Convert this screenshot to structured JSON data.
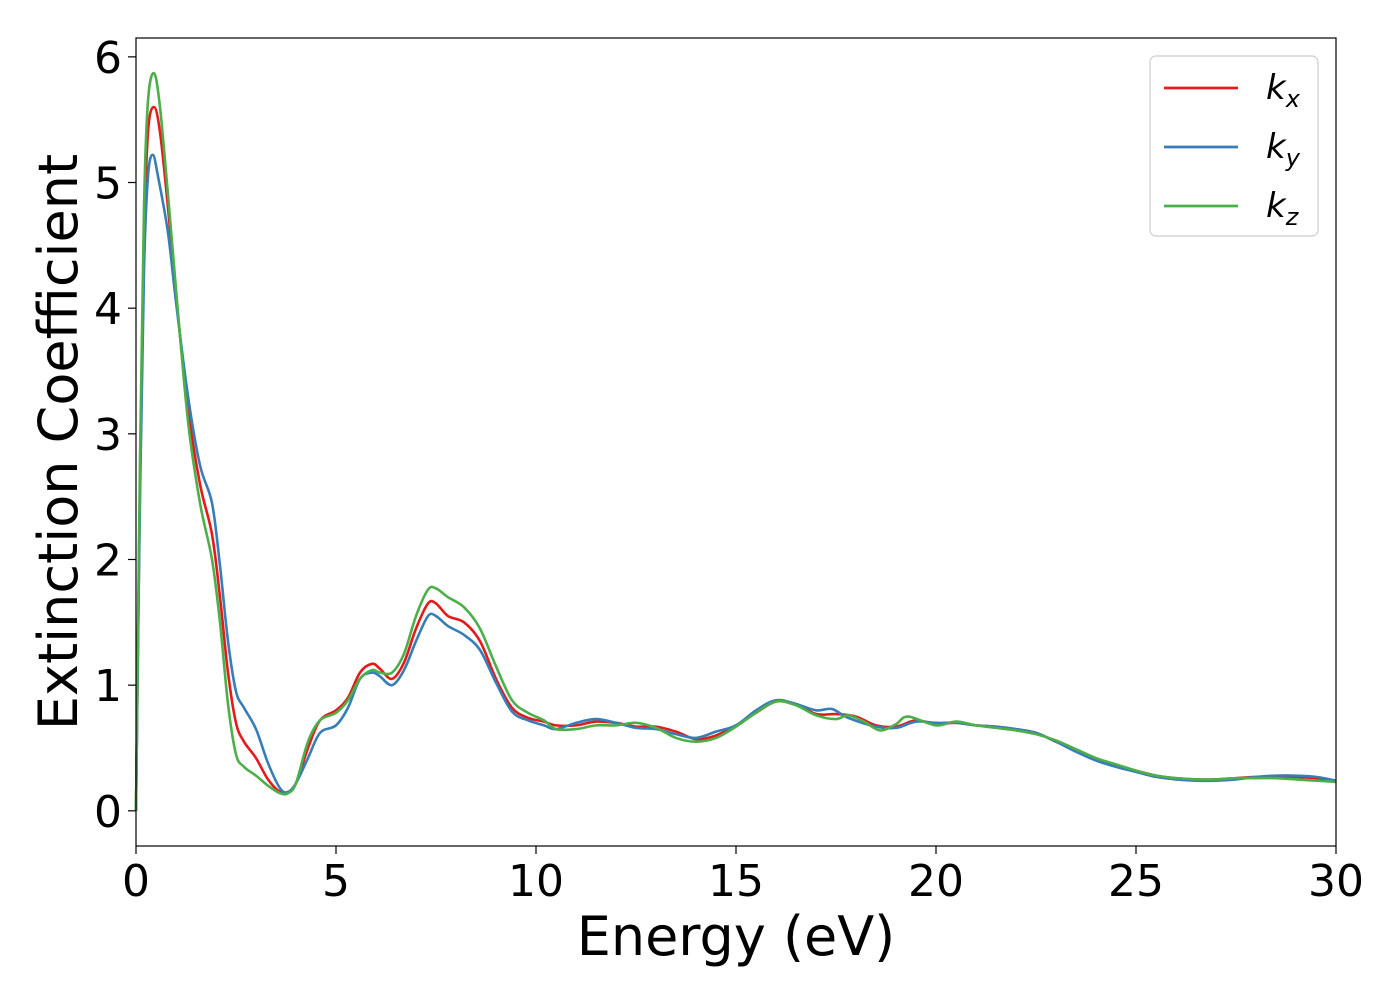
{
  "chart_data": {
    "type": "line",
    "xlabel": "Energy (eV)",
    "ylabel": "Extinction Coefficient",
    "xlim": [
      0,
      30
    ],
    "ylim": [
      -0.28,
      6.15
    ],
    "xticks": [
      "0",
      "5",
      "10",
      "15",
      "20",
      "25",
      "30"
    ],
    "yticks": [
      "0",
      "1",
      "2",
      "3",
      "4",
      "5",
      "6"
    ],
    "grid": false,
    "legend_position": "top-right",
    "series": [
      {
        "name": "k_x",
        "label_base": "k",
        "label_sub": "x",
        "color": "#e41a1c",
        "points": [
          [
            0,
            0
          ],
          [
            0.1,
            2.6
          ],
          [
            0.2,
            4.5
          ],
          [
            0.3,
            5.4
          ],
          [
            0.45,
            5.6
          ],
          [
            0.6,
            5.4
          ],
          [
            0.8,
            4.8
          ],
          [
            1.0,
            4.1
          ],
          [
            1.3,
            3.2
          ],
          [
            1.6,
            2.6
          ],
          [
            1.9,
            2.2
          ],
          [
            2.1,
            1.7
          ],
          [
            2.3,
            1.1
          ],
          [
            2.5,
            0.7
          ],
          [
            2.7,
            0.55
          ],
          [
            3.0,
            0.42
          ],
          [
            3.3,
            0.25
          ],
          [
            3.6,
            0.15
          ],
          [
            3.8,
            0.15
          ],
          [
            4.0,
            0.22
          ],
          [
            4.3,
            0.5
          ],
          [
            4.6,
            0.72
          ],
          [
            5.0,
            0.8
          ],
          [
            5.3,
            0.9
          ],
          [
            5.6,
            1.1
          ],
          [
            5.9,
            1.17
          ],
          [
            6.1,
            1.13
          ],
          [
            6.4,
            1.05
          ],
          [
            6.7,
            1.18
          ],
          [
            7.0,
            1.45
          ],
          [
            7.3,
            1.65
          ],
          [
            7.5,
            1.65
          ],
          [
            7.8,
            1.55
          ],
          [
            8.2,
            1.5
          ],
          [
            8.6,
            1.35
          ],
          [
            9.0,
            1.05
          ],
          [
            9.4,
            0.82
          ],
          [
            9.8,
            0.74
          ],
          [
            10.2,
            0.71
          ],
          [
            10.5,
            0.68
          ],
          [
            11.0,
            0.68
          ],
          [
            11.5,
            0.71
          ],
          [
            12.0,
            0.7
          ],
          [
            12.5,
            0.67
          ],
          [
            13.0,
            0.67
          ],
          [
            13.5,
            0.63
          ],
          [
            14.0,
            0.57
          ],
          [
            14.5,
            0.6
          ],
          [
            15.0,
            0.68
          ],
          [
            15.5,
            0.78
          ],
          [
            16.0,
            0.87
          ],
          [
            16.5,
            0.85
          ],
          [
            17.0,
            0.77
          ],
          [
            17.5,
            0.77
          ],
          [
            18.0,
            0.75
          ],
          [
            18.5,
            0.68
          ],
          [
            19.0,
            0.67
          ],
          [
            19.5,
            0.72
          ],
          [
            20.0,
            0.69
          ],
          [
            20.5,
            0.7
          ],
          [
            21.0,
            0.68
          ],
          [
            21.5,
            0.67
          ],
          [
            22.0,
            0.65
          ],
          [
            22.5,
            0.62
          ],
          [
            23.0,
            0.55
          ],
          [
            23.5,
            0.48
          ],
          [
            24.0,
            0.41
          ],
          [
            24.5,
            0.36
          ],
          [
            25.0,
            0.32
          ],
          [
            25.5,
            0.28
          ],
          [
            26.0,
            0.26
          ],
          [
            26.5,
            0.25
          ],
          [
            27.0,
            0.25
          ],
          [
            27.5,
            0.26
          ],
          [
            28.0,
            0.27
          ],
          [
            28.5,
            0.27
          ],
          [
            29.0,
            0.27
          ],
          [
            29.5,
            0.26
          ],
          [
            30.0,
            0.24
          ]
        ]
      },
      {
        "name": "k_y",
        "label_base": "k",
        "label_sub": "y",
        "color": "#377eb8",
        "points": [
          [
            0,
            0
          ],
          [
            0.1,
            2.5
          ],
          [
            0.2,
            4.3
          ],
          [
            0.3,
            5.05
          ],
          [
            0.42,
            5.22
          ],
          [
            0.55,
            5.05
          ],
          [
            0.8,
            4.6
          ],
          [
            1.0,
            4.05
          ],
          [
            1.3,
            3.3
          ],
          [
            1.6,
            2.75
          ],
          [
            1.9,
            2.45
          ],
          [
            2.1,
            1.95
          ],
          [
            2.3,
            1.35
          ],
          [
            2.5,
            0.95
          ],
          [
            2.7,
            0.82
          ],
          [
            3.0,
            0.65
          ],
          [
            3.3,
            0.38
          ],
          [
            3.6,
            0.18
          ],
          [
            3.8,
            0.15
          ],
          [
            4.0,
            0.22
          ],
          [
            4.3,
            0.42
          ],
          [
            4.6,
            0.62
          ],
          [
            5.0,
            0.68
          ],
          [
            5.3,
            0.82
          ],
          [
            5.6,
            1.05
          ],
          [
            5.9,
            1.1
          ],
          [
            6.1,
            1.07
          ],
          [
            6.4,
            1.0
          ],
          [
            6.7,
            1.12
          ],
          [
            7.0,
            1.35
          ],
          [
            7.3,
            1.55
          ],
          [
            7.5,
            1.55
          ],
          [
            7.8,
            1.47
          ],
          [
            8.2,
            1.4
          ],
          [
            8.6,
            1.28
          ],
          [
            9.0,
            1.02
          ],
          [
            9.4,
            0.79
          ],
          [
            9.8,
            0.72
          ],
          [
            10.2,
            0.68
          ],
          [
            10.5,
            0.65
          ],
          [
            11.0,
            0.7
          ],
          [
            11.5,
            0.73
          ],
          [
            12.0,
            0.7
          ],
          [
            12.5,
            0.66
          ],
          [
            13.0,
            0.65
          ],
          [
            13.5,
            0.61
          ],
          [
            14.0,
            0.58
          ],
          [
            14.5,
            0.63
          ],
          [
            15.0,
            0.68
          ],
          [
            15.5,
            0.8
          ],
          [
            16.0,
            0.88
          ],
          [
            16.5,
            0.85
          ],
          [
            17.0,
            0.8
          ],
          [
            17.4,
            0.81
          ],
          [
            17.8,
            0.74
          ],
          [
            18.5,
            0.67
          ],
          [
            19.0,
            0.66
          ],
          [
            19.5,
            0.71
          ],
          [
            20.0,
            0.7
          ],
          [
            20.5,
            0.7
          ],
          [
            21.0,
            0.68
          ],
          [
            21.5,
            0.67
          ],
          [
            22.0,
            0.65
          ],
          [
            22.5,
            0.62
          ],
          [
            23.0,
            0.55
          ],
          [
            23.5,
            0.47
          ],
          [
            24.0,
            0.4
          ],
          [
            24.5,
            0.35
          ],
          [
            25.0,
            0.31
          ],
          [
            25.5,
            0.27
          ],
          [
            26.0,
            0.25
          ],
          [
            26.5,
            0.24
          ],
          [
            27.0,
            0.24
          ],
          [
            27.5,
            0.25
          ],
          [
            28.0,
            0.27
          ],
          [
            28.5,
            0.28
          ],
          [
            29.0,
            0.28
          ],
          [
            29.5,
            0.27
          ],
          [
            30.0,
            0.24
          ]
        ]
      },
      {
        "name": "k_z",
        "label_base": "k",
        "label_sub": "z",
        "color": "#4daf4a",
        "points": [
          [
            0,
            0
          ],
          [
            0.1,
            2.8
          ],
          [
            0.2,
            4.8
          ],
          [
            0.3,
            5.65
          ],
          [
            0.45,
            5.87
          ],
          [
            0.6,
            5.6
          ],
          [
            0.8,
            4.9
          ],
          [
            1.0,
            4.15
          ],
          [
            1.3,
            3.1
          ],
          [
            1.6,
            2.45
          ],
          [
            1.9,
            2.0
          ],
          [
            2.1,
            1.5
          ],
          [
            2.3,
            0.85
          ],
          [
            2.5,
            0.45
          ],
          [
            2.7,
            0.35
          ],
          [
            3.0,
            0.28
          ],
          [
            3.3,
            0.2
          ],
          [
            3.6,
            0.14
          ],
          [
            3.8,
            0.14
          ],
          [
            4.0,
            0.22
          ],
          [
            4.3,
            0.55
          ],
          [
            4.6,
            0.72
          ],
          [
            5.0,
            0.78
          ],
          [
            5.3,
            0.88
          ],
          [
            5.6,
            1.05
          ],
          [
            5.9,
            1.12
          ],
          [
            6.1,
            1.1
          ],
          [
            6.4,
            1.1
          ],
          [
            6.7,
            1.25
          ],
          [
            7.0,
            1.55
          ],
          [
            7.3,
            1.76
          ],
          [
            7.5,
            1.77
          ],
          [
            7.8,
            1.7
          ],
          [
            8.2,
            1.62
          ],
          [
            8.6,
            1.45
          ],
          [
            9.0,
            1.15
          ],
          [
            9.4,
            0.88
          ],
          [
            9.8,
            0.78
          ],
          [
            10.2,
            0.72
          ],
          [
            10.5,
            0.65
          ],
          [
            11.0,
            0.65
          ],
          [
            11.5,
            0.68
          ],
          [
            12.0,
            0.68
          ],
          [
            12.5,
            0.7
          ],
          [
            13.0,
            0.66
          ],
          [
            13.5,
            0.58
          ],
          [
            14.0,
            0.55
          ],
          [
            14.5,
            0.58
          ],
          [
            15.0,
            0.67
          ],
          [
            15.5,
            0.78
          ],
          [
            16.0,
            0.87
          ],
          [
            16.5,
            0.84
          ],
          [
            17.0,
            0.76
          ],
          [
            17.5,
            0.73
          ],
          [
            17.8,
            0.76
          ],
          [
            18.2,
            0.71
          ],
          [
            18.6,
            0.64
          ],
          [
            19.0,
            0.69
          ],
          [
            19.3,
            0.75
          ],
          [
            20.0,
            0.68
          ],
          [
            20.5,
            0.71
          ],
          [
            21.0,
            0.68
          ],
          [
            21.5,
            0.66
          ],
          [
            22.0,
            0.64
          ],
          [
            22.5,
            0.61
          ],
          [
            23.0,
            0.56
          ],
          [
            23.5,
            0.49
          ],
          [
            24.0,
            0.42
          ],
          [
            24.5,
            0.37
          ],
          [
            25.0,
            0.32
          ],
          [
            25.5,
            0.28
          ],
          [
            26.0,
            0.26
          ],
          [
            26.5,
            0.25
          ],
          [
            27.0,
            0.25
          ],
          [
            27.5,
            0.26
          ],
          [
            28.0,
            0.26
          ],
          [
            28.5,
            0.26
          ],
          [
            29.0,
            0.25
          ],
          [
            29.5,
            0.24
          ],
          [
            30.0,
            0.23
          ]
        ]
      }
    ]
  }
}
